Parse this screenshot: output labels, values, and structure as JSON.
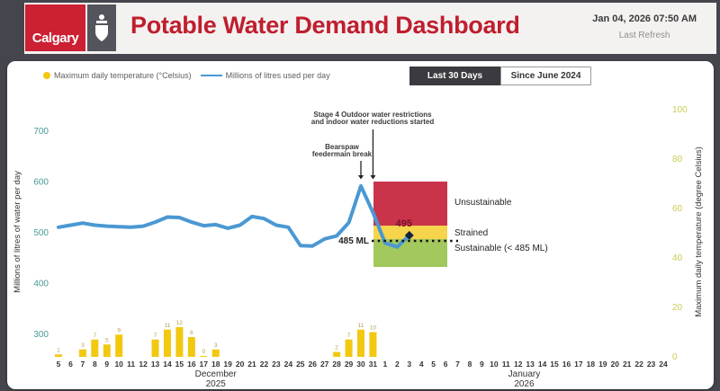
{
  "header": {
    "logo": "Calgary",
    "title": "Potable Water Demand Dashboard",
    "timestamp": "Jan 04, 2026 07:50 AM",
    "last_refresh": "Last Refresh"
  },
  "legend": [
    {
      "label": "Maximum daily temperature (°Celsius)",
      "color": "#f2c811",
      "swatch": "dot"
    },
    {
      "label": "Millions of litres used per day",
      "color": "#4a98d3",
      "swatch": "line"
    }
  ],
  "buttons": [
    {
      "label": "Last 30 Days",
      "active": true
    },
    {
      "label": "Since June 2024",
      "active": false
    }
  ],
  "chart_data": {
    "type": "line+bar",
    "left_axis": {
      "title": "Millions of litres of water per day",
      "ticks": [
        700,
        600,
        500,
        400,
        300
      ],
      "color": "#4a9b96"
    },
    "right_axis": {
      "title": "Maximum daily temperature (degree Celsius)",
      "ticks": [
        100,
        80,
        60,
        40,
        20,
        0
      ],
      "color": "#c9cd52"
    },
    "x_axis": {
      "dec_days": [
        5,
        6,
        7,
        8,
        9,
        10,
        11,
        12,
        13,
        14,
        15,
        16,
        17,
        18,
        19,
        20,
        21,
        22,
        23,
        24,
        25,
        26,
        27,
        28,
        29,
        30,
        31
      ],
      "jan_days": [
        1,
        2,
        3,
        4,
        5,
        6,
        7,
        8,
        9,
        10,
        11,
        12,
        13,
        14,
        15,
        16,
        17,
        18,
        19,
        20,
        21,
        22,
        23,
        24
      ],
      "month_labels": [
        {
          "month": "December",
          "year": "2025"
        },
        {
          "month": "January",
          "year": "2026"
        }
      ]
    },
    "series": [
      {
        "name": "Millions of litres used per day",
        "type": "line",
        "color": "#4a98d3",
        "start": "Dec 5",
        "end": "Jan 3",
        "values": [
          511,
          515,
          519,
          515,
          513,
          512,
          511,
          513,
          521,
          531,
          530,
          521,
          514,
          516,
          509,
          515,
          532,
          528,
          515,
          511,
          475,
          474,
          488,
          494,
          520,
          592,
          540,
          480,
          472,
          495
        ]
      },
      {
        "name": "Maximum daily temperature (°Celsius)",
        "type": "bar",
        "color": "#f2c811",
        "values": [
          1,
          null,
          3,
          7,
          5,
          9,
          null,
          null,
          7,
          11,
          12,
          8,
          0,
          3,
          null,
          null,
          null,
          null,
          null,
          null,
          null,
          null,
          null,
          2,
          7,
          11,
          10,
          null,
          null,
          null
        ]
      }
    ],
    "zones": [
      {
        "label": "Unsustainable",
        "color": "#c9344a"
      },
      {
        "label": "Strained",
        "color": "#f6d44c"
      },
      {
        "label": "Sustainable (< 485 ML)",
        "color": "#a2c85e"
      }
    ],
    "threshold": {
      "label": "485 ML",
      "value": 485
    },
    "latest": {
      "label": "495",
      "value": 495,
      "day_index": 29
    },
    "annotations": [
      {
        "lines": [
          "Stage 4 Outdoor water restrictions",
          "and indoor water reductions started"
        ],
        "day": "Dec 31",
        "day_index": 26
      },
      {
        "lines": [
          "Bearspaw",
          "feedermain break"
        ],
        "day": "Dec 30",
        "day_index": 25
      }
    ]
  }
}
